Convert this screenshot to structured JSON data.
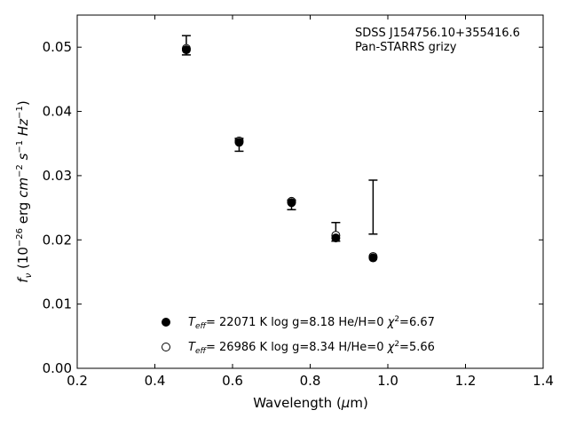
{
  "chart_data": {
    "type": "scatter",
    "title": "",
    "xlabel": "Wavelength (μm)",
    "ylabel": "f_ν (10^-26 erg cm^-2 s^-1 Hz^-1)",
    "xlim": [
      0.2,
      1.4
    ],
    "ylim": [
      0.0,
      0.055
    ],
    "x_ticks": [
      "0.2",
      "0.4",
      "0.6",
      "0.8",
      "1.0",
      "1.2",
      "1.4"
    ],
    "y_ticks": [
      "0.00",
      "0.01",
      "0.02",
      "0.03",
      "0.04",
      "0.05"
    ],
    "grid": false,
    "annotation": {
      "line1": "SDSS J154756.10+355416.6",
      "line2": "Pan-STARRS grizy"
    },
    "observed": {
      "x": [
        0.481,
        0.617,
        0.752,
        0.866,
        0.962
      ],
      "y_low": [
        0.0488,
        0.0338,
        0.0247,
        0.0198,
        0.0209
      ],
      "y_high": [
        0.0518,
        0.0358,
        0.0262,
        0.0227,
        0.0293
      ]
    },
    "series": [
      {
        "name": "T_eff = 22071 K  log g=8.18  He/H=0  χ²=6.67",
        "marker": "filled-circle",
        "x": [
          0.481,
          0.617,
          0.752,
          0.866,
          0.962
        ],
        "y": [
          0.0496,
          0.0352,
          0.0258,
          0.0203,
          0.0172
        ]
      },
      {
        "name": "T_eff = 26986 K  log g=8.34  H/He=0  χ²=5.66",
        "marker": "open-circle",
        "x": [
          0.481,
          0.617,
          0.752,
          0.866,
          0.962
        ],
        "y": [
          0.0498,
          0.0354,
          0.026,
          0.0207,
          0.0174
        ]
      }
    ],
    "legend": [
      {
        "temp": "22071 K",
        "logg": "log g=8.18",
        "comp": "He/H=0",
        "chi": "=6.67"
      },
      {
        "temp": "26986 K",
        "logg": "log g=8.34",
        "comp": "H/He=0",
        "chi": "=5.66"
      }
    ],
    "legend_placement": "lower-center"
  }
}
